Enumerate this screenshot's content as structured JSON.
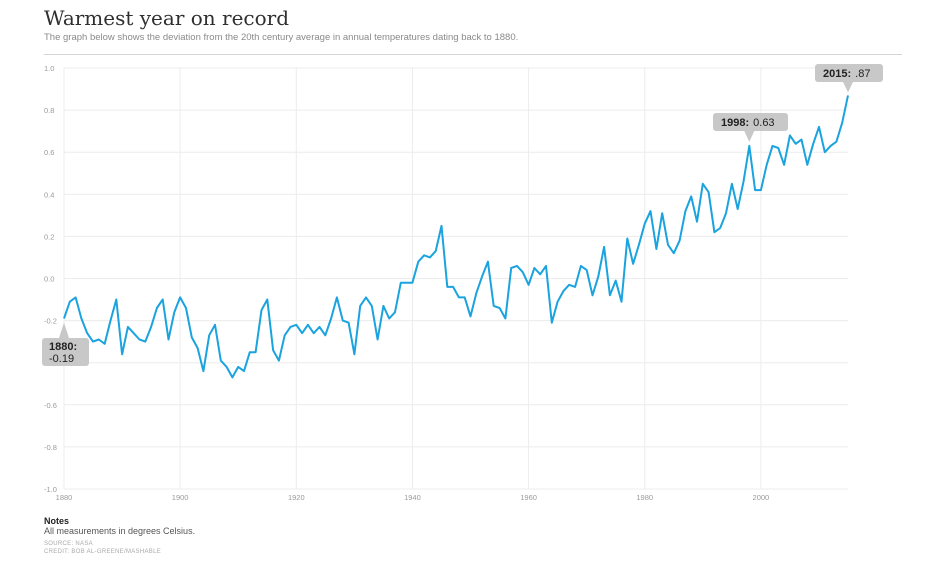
{
  "header": {
    "title": "Warmest year on record",
    "subtitle": "The graph below shows the deviation from the 20th century average in annual temperatures dating back to 1880."
  },
  "footer": {
    "notes_heading": "Notes",
    "notes_text": "All measurements in degrees Celsius.",
    "source": "SOURCE: NASA",
    "credit": "CREDIT: BOB AL-GREENE/MASHABLE"
  },
  "colors": {
    "line": "#1aa3de",
    "callout": "#c8c8c8",
    "grid": "#ececec"
  },
  "chart_data": {
    "type": "line",
    "title": "Warmest year on record",
    "xlabel": "",
    "ylabel": "",
    "xlim": [
      1880,
      2015
    ],
    "ylim": [
      -1.0,
      1.0
    ],
    "grid": true,
    "x_ticks": [
      "1880",
      "1900",
      "1920",
      "1940",
      "1960",
      "1980",
      "2000"
    ],
    "x_tick_values": [
      1880,
      1900,
      1920,
      1940,
      1960,
      1980,
      2000
    ],
    "y_ticks": [
      "1.0",
      "0.8",
      "0.6",
      "0.4",
      "0.2",
      "0.0",
      "-0.2",
      "-0.4",
      "-0.6",
      "-0.8",
      "-1.0"
    ],
    "y_tick_values": [
      1.0,
      0.8,
      0.6,
      0.4,
      0.2,
      0.0,
      -0.2,
      -0.4,
      -0.6,
      -0.8,
      -1.0
    ],
    "series": [
      {
        "x": [
          1880,
          1881,
          1882,
          1883,
          1884,
          1885,
          1886,
          1887,
          1888,
          1889,
          1890,
          1891,
          1892,
          1893,
          1894,
          1895,
          1896,
          1897,
          1898,
          1899,
          1900,
          1901,
          1902,
          1903,
          1904,
          1905,
          1906,
          1907,
          1908,
          1909,
          1910,
          1911,
          1912,
          1913,
          1914,
          1915,
          1916,
          1917,
          1918,
          1919,
          1920,
          1921,
          1922,
          1923,
          1924,
          1925,
          1926,
          1927,
          1928,
          1929,
          1930,
          1931,
          1932,
          1933,
          1934,
          1935,
          1936,
          1937,
          1938,
          1939,
          1940,
          1941,
          1942,
          1943,
          1944,
          1945,
          1946,
          1947,
          1948,
          1949,
          1950,
          1951,
          1952,
          1953,
          1954,
          1955,
          1956,
          1957,
          1958,
          1959,
          1960,
          1961,
          1962,
          1963,
          1964,
          1965,
          1966,
          1967,
          1968,
          1969,
          1970,
          1971,
          1972,
          1973,
          1974,
          1975,
          1976,
          1977,
          1978,
          1979,
          1980,
          1981,
          1982,
          1983,
          1984,
          1985,
          1986,
          1987,
          1988,
          1989,
          1990,
          1991,
          1992,
          1993,
          1994,
          1995,
          1996,
          1997,
          1998,
          1999,
          2000,
          2001,
          2002,
          2003,
          2004,
          2005,
          2006,
          2007,
          2008,
          2009,
          2010,
          2011,
          2012,
          2013,
          2014,
          2015
        ],
        "values": [
          -0.19,
          -0.11,
          -0.09,
          -0.19,
          -0.26,
          -0.3,
          -0.29,
          -0.31,
          -0.2,
          -0.1,
          -0.36,
          -0.23,
          -0.26,
          -0.29,
          -0.3,
          -0.23,
          -0.14,
          -0.1,
          -0.29,
          -0.16,
          -0.09,
          -0.14,
          -0.28,
          -0.33,
          -0.44,
          -0.27,
          -0.22,
          -0.39,
          -0.42,
          -0.47,
          -0.42,
          -0.44,
          -0.35,
          -0.35,
          -0.15,
          -0.1,
          -0.34,
          -0.39,
          -0.27,
          -0.23,
          -0.22,
          -0.26,
          -0.22,
          -0.26,
          -0.23,
          -0.27,
          -0.19,
          -0.09,
          -0.2,
          -0.21,
          -0.36,
          -0.13,
          -0.09,
          -0.13,
          -0.29,
          -0.13,
          -0.19,
          -0.16,
          -0.02,
          -0.02,
          -0.02,
          0.08,
          0.11,
          0.1,
          0.13,
          0.25,
          -0.04,
          -0.04,
          -0.09,
          -0.09,
          -0.18,
          -0.07,
          0.01,
          0.08,
          -0.13,
          -0.14,
          -0.19,
          0.05,
          0.06,
          0.03,
          -0.03,
          0.05,
          0.02,
          0.06,
          -0.21,
          -0.11,
          -0.06,
          -0.03,
          -0.04,
          0.06,
          0.04,
          -0.08,
          0.01,
          0.15,
          -0.08,
          -0.01,
          -0.11,
          0.19,
          0.07,
          0.16,
          0.26,
          0.32,
          0.14,
          0.31,
          0.16,
          0.12,
          0.18,
          0.32,
          0.39,
          0.27,
          0.45,
          0.41,
          0.22,
          0.24,
          0.31,
          0.45,
          0.33,
          0.46,
          0.63,
          0.42,
          0.42,
          0.54,
          0.63,
          0.62,
          0.54,
          0.68,
          0.64,
          0.66,
          0.54,
          0.64,
          0.72,
          0.6,
          0.63,
          0.65,
          0.74,
          0.87
        ]
      }
    ],
    "annotations": [
      {
        "x": 1880,
        "y": -0.19,
        "label_bold": "1880:",
        "label": "-0.19"
      },
      {
        "x": 1998,
        "y": 0.63,
        "label_bold": "1998:",
        "label": "0.63"
      },
      {
        "x": 2015,
        "y": 0.87,
        "label_bold": "2015:",
        "label": ".87"
      }
    ]
  }
}
